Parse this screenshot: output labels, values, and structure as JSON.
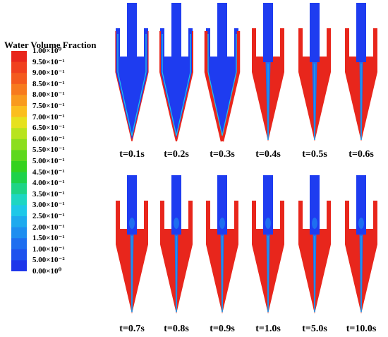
{
  "legend": {
    "title": "Water Volume Fraction",
    "labels": [
      "1.00×10⁰",
      "9.50×10⁻¹",
      "9.00×10⁻¹",
      "8.50×10⁻¹",
      "8.00×10⁻¹",
      "7.50×10⁻¹",
      "7.00×10⁻¹",
      "6.50×10⁻¹",
      "6.00×10⁻¹",
      "5.50×10⁻¹",
      "5.00×10⁻¹",
      "4.50×10⁻¹",
      "4.00×10⁻¹",
      "3.50×10⁻¹",
      "3.00×10⁻¹",
      "2.50×10⁻¹",
      "2.00×10⁻¹",
      "1.50×10⁻¹",
      "1.00×10⁻¹",
      "5.00×10⁻²",
      "0.00×10⁰"
    ],
    "colors": [
      "#e8261c",
      "#f0401e",
      "#f45a1e",
      "#f77a1e",
      "#f99a1e",
      "#fbbe1e",
      "#e6e11e",
      "#b8e41e",
      "#8cde1e",
      "#5ed81e",
      "#34d21e",
      "#1ed24a",
      "#1ed486",
      "#1ed6c2",
      "#1ec8e8",
      "#1eaaee",
      "#1e8ef0",
      "#1e6ef0",
      "#1e52ee",
      "#1e36ea"
    ]
  },
  "frames": [
    {
      "label": "t=0.1s",
      "water_fraction": 0.05
    },
    {
      "label": "t=0.2s",
      "water_fraction": 0.2
    },
    {
      "label": "t=0.3s",
      "water_fraction": 0.45
    },
    {
      "label": "t=0.4s",
      "water_fraction": 0.6
    },
    {
      "label": "t=0.5s",
      "water_fraction": 0.95
    },
    {
      "label": "t=0.6s",
      "water_fraction": 1.0
    },
    {
      "label": "t=0.7s",
      "water_fraction": 1.0
    },
    {
      "label": "t=0.8s",
      "water_fraction": 1.0
    },
    {
      "label": "t=0.9s",
      "water_fraction": 1.0
    },
    {
      "label": "t=1.0s",
      "water_fraction": 1.0
    },
    {
      "label": "t=5.0s",
      "water_fraction": 1.0
    },
    {
      "label": "t=10.0s",
      "water_fraction": 1.0
    }
  ],
  "colors": {
    "water": "#e8261c",
    "air": "#1e3cf0",
    "core": "#1e6ef0",
    "interface": "#1ec8e8"
  }
}
